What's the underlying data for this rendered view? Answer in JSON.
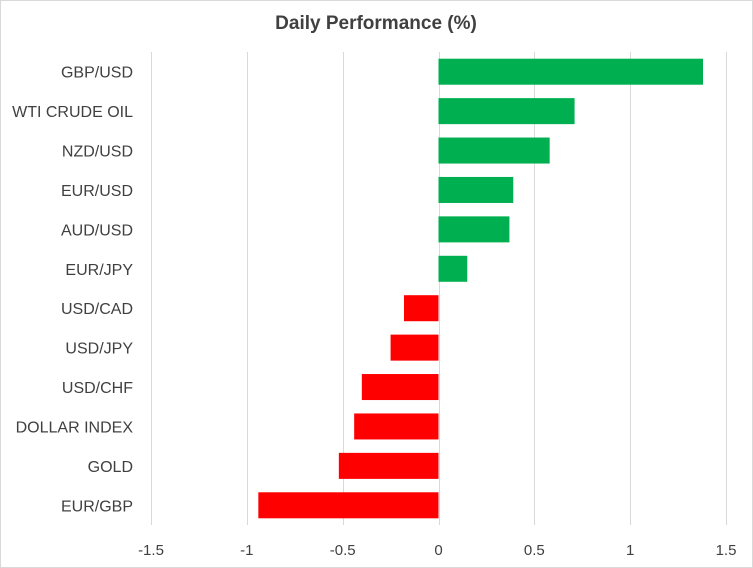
{
  "chart_data": {
    "type": "bar",
    "orientation": "horizontal",
    "title": "Daily Performance (%)",
    "xlabel": "",
    "ylabel": "",
    "categories": [
      "GBP/USD",
      "WTI CRUDE OIL",
      "NZD/USD",
      "EUR/USD",
      "AUD/USD",
      "EUR/JPY",
      "USD/CAD",
      "USD/JPY",
      "USD/CHF",
      "DOLLAR INDEX",
      "GOLD",
      "EUR/GBP"
    ],
    "values": [
      1.38,
      0.71,
      0.58,
      0.39,
      0.37,
      0.15,
      -0.18,
      -0.25,
      -0.4,
      -0.44,
      -0.52,
      -0.94
    ],
    "xlim": [
      -1.5,
      1.5
    ],
    "xticks": [
      -1.5,
      -1,
      -0.5,
      0,
      0.5,
      1,
      1.5
    ],
    "xtick_labels": [
      "-1.5",
      "-1",
      "-0.5",
      "0",
      "0.5",
      "1",
      "1.5"
    ],
    "grid": true,
    "colors": {
      "positive": "#00b050",
      "negative": "#ff0000",
      "grid": "#d9d9d9",
      "text": "#404040"
    }
  }
}
